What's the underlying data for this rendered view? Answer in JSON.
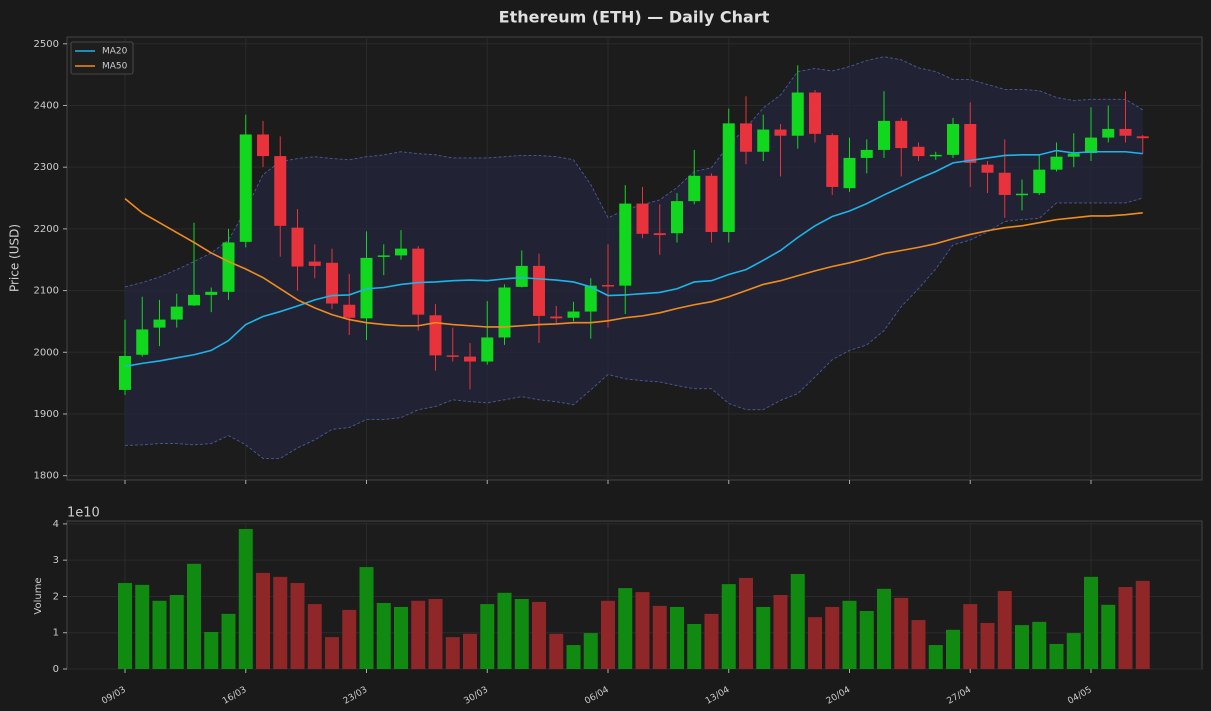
{
  "chart_data": [
    {
      "type": "candlestick",
      "title": "Ethereum (ETH) — Daily Chart",
      "ylabel": "Price (USD)",
      "ylim": [
        1793,
        2511
      ],
      "yticks": [
        1800,
        1900,
        2000,
        2100,
        2200,
        2300,
        2400,
        2500
      ],
      "grid": true,
      "legend": "upper left",
      "up_color": "#11d81f",
      "down_color": "#e8333c",
      "open": [
        1939,
        1996,
        2040,
        2053,
        2076,
        2093,
        2098,
        2179,
        2353,
        2318,
        2202,
        2147,
        2145,
        2077,
        2055,
        2155,
        2157,
        2168,
        2060,
        1995,
        1993,
        1985,
        2024,
        2106,
        2140,
        2058,
        2056,
        2066,
        2109,
        2108,
        2241,
        2193,
        2193,
        2245,
        2286,
        2195,
        2371,
        2325,
        2361,
        2351,
        2421,
        2352,
        2266,
        2315,
        2328,
        2375,
        2333,
        2318,
        2320,
        2370,
        2304,
        2291,
        2255,
        2258,
        2296,
        2317,
        2323,
        2348,
        2362,
        2350
      ],
      "high": [
        2053,
        2090,
        2085,
        2095,
        2210,
        2105,
        2200,
        2385,
        2375,
        2350,
        2232,
        2175,
        2168,
        2127,
        2196,
        2175,
        2198,
        2172,
        2078,
        2040,
        2015,
        2083,
        2110,
        2165,
        2160,
        2075,
        2082,
        2120,
        2175,
        2271,
        2268,
        2240,
        2258,
        2328,
        2290,
        2395,
        2415,
        2385,
        2370,
        2465,
        2425,
        2355,
        2348,
        2345,
        2423,
        2380,
        2340,
        2325,
        2380,
        2405,
        2310,
        2345,
        2280,
        2320,
        2340,
        2355,
        2397,
        2400,
        2423,
        2352
      ],
      "low": [
        1931,
        1993,
        2010,
        2040,
        2075,
        2065,
        2085,
        2170,
        2300,
        2155,
        2100,
        2120,
        2070,
        2028,
        2020,
        2125,
        2150,
        2035,
        1970,
        1985,
        1940,
        1980,
        2012,
        2105,
        2015,
        2045,
        2050,
        2022,
        2040,
        2062,
        2185,
        2158,
        2178,
        2240,
        2178,
        2178,
        2305,
        2310,
        2285,
        2330,
        2340,
        2255,
        2260,
        2290,
        2315,
        2285,
        2310,
        2312,
        2315,
        2268,
        2258,
        2218,
        2230,
        2255,
        2293,
        2300,
        2310,
        2340,
        2340,
        2322
      ],
      "close": [
        1994,
        2037,
        2053,
        2074,
        2093,
        2098,
        2178,
        2353,
        2318,
        2205,
        2139,
        2140,
        2079,
        2056,
        2153,
        2157,
        2168,
        2061,
        1995,
        1993,
        1985,
        2024,
        2105,
        2140,
        2059,
        2055,
        2066,
        2108,
        2107,
        2241,
        2192,
        2190,
        2245,
        2286,
        2195,
        2371,
        2325,
        2361,
        2351,
        2421,
        2354,
        2268,
        2315,
        2328,
        2375,
        2331,
        2318,
        2320,
        2370,
        2307,
        2291,
        2255,
        2257,
        2296,
        2317,
        2322,
        2348,
        2362,
        2351,
        2347
      ],
      "lines": [
        {
          "name": "MA20",
          "color": "#1eb4e6",
          "values": [
            1977,
            1982,
            1986,
            1991,
            1996,
            2003,
            2019,
            2045,
            2058,
            2066,
            2075,
            2085,
            2092,
            2093,
            2103,
            2105,
            2110,
            2113,
            2114,
            2116,
            2117,
            2116,
            2119,
            2121,
            2119,
            2117,
            2114,
            2106,
            2092,
            2093,
            2095,
            2097,
            2103,
            2114,
            2116,
            2126,
            2134,
            2149,
            2165,
            2186,
            2205,
            2220,
            2229,
            2241,
            2255,
            2268,
            2281,
            2293,
            2307,
            2311,
            2315,
            2319,
            2320,
            2320,
            2327,
            2323,
            2325,
            2325,
            2325,
            2322
          ]
        },
        {
          "name": "MA50",
          "color": "#f08c1e",
          "values": [
            2249,
            2226,
            2210,
            2194,
            2178,
            2161,
            2147,
            2135,
            2121,
            2103,
            2085,
            2072,
            2061,
            2053,
            2048,
            2045,
            2043,
            2043,
            2048,
            2045,
            2043,
            2041,
            2041,
            2043,
            2045,
            2046,
            2048,
            2048,
            2051,
            2056,
            2059,
            2064,
            2071,
            2077,
            2082,
            2090,
            2100,
            2110,
            2116,
            2124,
            2132,
            2139,
            2145,
            2152,
            2160,
            2165,
            2170,
            2176,
            2184,
            2191,
            2197,
            2202,
            2205,
            2210,
            2215,
            2218,
            2221,
            2221,
            2223,
            2226
          ]
        }
      ],
      "bands": {
        "color": "#4a5a9a",
        "upper": [
          2106,
          2113,
          2122,
          2134,
          2147,
          2161,
          2182,
          2231,
          2288,
          2309,
          2314,
          2317,
          2314,
          2312,
          2317,
          2320,
          2325,
          2322,
          2320,
          2315,
          2315,
          2315,
          2317,
          2319,
          2319,
          2317,
          2312,
          2272,
          2218,
          2231,
          2239,
          2247,
          2267,
          2293,
          2299,
          2336,
          2364,
          2396,
          2417,
          2455,
          2460,
          2456,
          2463,
          2473,
          2479,
          2474,
          2461,
          2455,
          2442,
          2442,
          2434,
          2426,
          2426,
          2424,
          2413,
          2408,
          2410,
          2410,
          2410,
          2393
        ],
        "lower": [
          1849,
          1850,
          1852,
          1852,
          1850,
          1852,
          1865,
          1850,
          1828,
          1828,
          1845,
          1858,
          1875,
          1878,
          1891,
          1891,
          1894,
          1907,
          1912,
          1923,
          1920,
          1918,
          1923,
          1928,
          1923,
          1920,
          1915,
          1939,
          1964,
          1957,
          1954,
          1952,
          1946,
          1941,
          1941,
          1917,
          1907,
          1907,
          1922,
          1933,
          1960,
          1988,
          2003,
          2012,
          2035,
          2074,
          2103,
          2135,
          2174,
          2182,
          2195,
          2212,
          2215,
          2217,
          2242,
          2242,
          2242,
          2242,
          2242,
          2250
        ]
      }
    },
    {
      "type": "bar",
      "ylabel": "Volume",
      "offset_label": "1e10",
      "ylim": [
        0,
        4.08
      ],
      "yticks": [
        0,
        1,
        2,
        3,
        4
      ],
      "grid": true,
      "up_color": "#118a11",
      "down_color": "#8f2627",
      "xticks": [
        {
          "value": 0,
          "label": "09/03"
        },
        {
          "value": 7,
          "label": "16/03"
        },
        {
          "value": 14,
          "label": "23/03"
        },
        {
          "value": 21,
          "label": "30/03"
        },
        {
          "value": 28,
          "label": "06/04"
        },
        {
          "value": 35,
          "label": "13/04"
        },
        {
          "value": 42,
          "label": "20/04"
        },
        {
          "value": 49,
          "label": "27/04"
        },
        {
          "value": 56,
          "label": "04/05"
        }
      ],
      "values": [
        2.37,
        2.32,
        1.88,
        2.04,
        2.9,
        1.02,
        1.52,
        3.86,
        2.65,
        2.54,
        2.37,
        1.79,
        0.88,
        1.63,
        2.81,
        1.82,
        1.71,
        1.88,
        1.93,
        0.88,
        0.97,
        1.79,
        2.1,
        1.93,
        1.85,
        0.97,
        0.66,
        0.99,
        1.88,
        2.23,
        2.12,
        1.74,
        1.71,
        1.24,
        1.52,
        2.34,
        2.51,
        1.71,
        2.04,
        2.62,
        1.43,
        1.71,
        1.88,
        1.6,
        2.21,
        1.96,
        1.35,
        0.66,
        1.08,
        1.79,
        1.27,
        2.15,
        1.21,
        1.3,
        0.69,
        0.99,
        2.54,
        1.77,
        2.26,
        2.43
      ]
    }
  ]
}
